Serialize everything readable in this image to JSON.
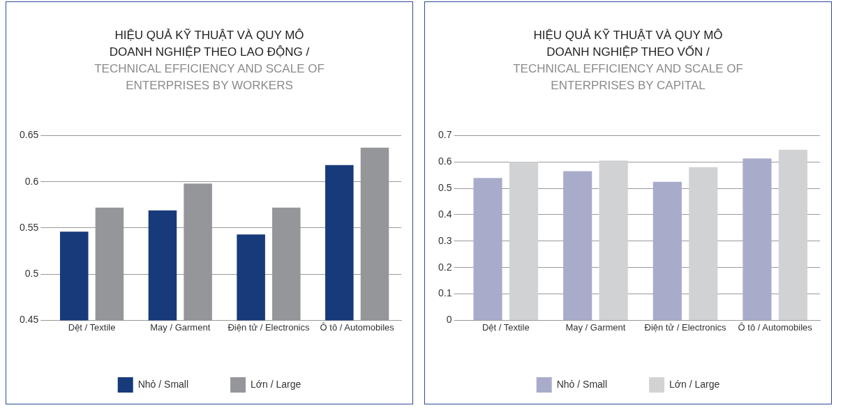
{
  "chart_data": [
    {
      "type": "bar",
      "title": "HIỆU QUẢ KỸ THUẬT VÀ QUY MÔ DOANH NGHIỆP THEO LAO ĐỘNG /",
      "subtitle": "TECHNICAL EFFICIENCY AND SCALE OF ENTERPRISES BY WORKERS",
      "categories": [
        "Dệt / Textile",
        "May / Garment",
        "Điện tử / Electronics",
        "Ô tô / Automobiles"
      ],
      "series": [
        {
          "name": "Nhỏ / Small",
          "color": "#173a7a",
          "values": [
            0.546,
            0.569,
            0.543,
            0.618
          ]
        },
        {
          "name": "Lớn / Large",
          "color": "#959699",
          "values": [
            0.572,
            0.598,
            0.572,
            0.637
          ]
        }
      ],
      "ylim": [
        0.45,
        0.65
      ],
      "yticks": [
        0.45,
        0.5,
        0.55,
        0.6,
        0.65
      ],
      "grid": "y",
      "legend": "bottom"
    },
    {
      "type": "bar",
      "title": "HIỆU QUẢ KỸ THUẬT VÀ QUY MÔ DOANH NGHIỆP THEO VỐN /",
      "subtitle": "TECHNICAL EFFICIENCY AND SCALE OF ENTERPRISES BY CAPITAL",
      "categories": [
        "Dệt / Textile",
        "May / Garment",
        "Điện tử / Electronics",
        "Ô tô / Automobiles"
      ],
      "series": [
        {
          "name": "Nhỏ / Small",
          "color": "#a9abcb",
          "values": [
            0.539,
            0.565,
            0.525,
            0.613
          ]
        },
        {
          "name": "Lớn / Large",
          "color": "#d1d2d4",
          "values": [
            0.6,
            0.605,
            0.58,
            0.646
          ]
        }
      ],
      "ylim": [
        0,
        0.7
      ],
      "yticks": [
        0,
        0.1,
        0.2,
        0.3,
        0.4,
        0.5,
        0.6,
        0.7
      ],
      "grid": "y",
      "legend": "bottom"
    }
  ]
}
